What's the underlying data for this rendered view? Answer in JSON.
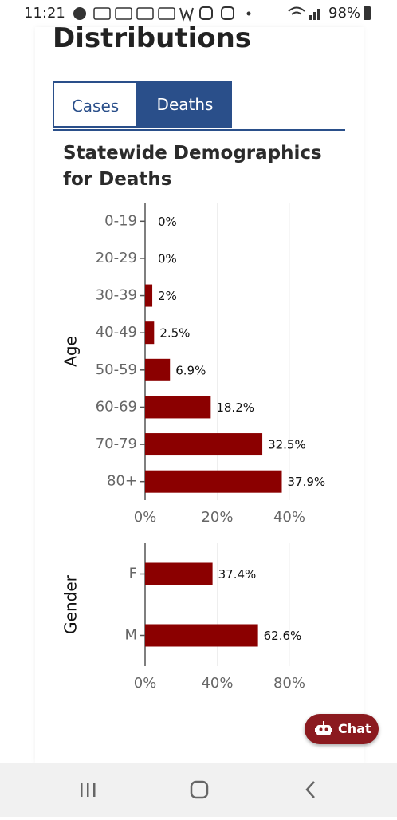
{
  "status_bar": {
    "time": "11:21",
    "battery": "98%"
  },
  "header": {
    "title": "Distributions"
  },
  "tabs": [
    "Cases",
    "Deaths"
  ],
  "chart_heading": "Statewide Demographics for Deaths",
  "chart_data": [
    {
      "type": "bar",
      "orientation": "horizontal",
      "y_label": "Age",
      "categories": [
        "0-19",
        "20-29",
        "30-39",
        "40-49",
        "50-59",
        "60-69",
        "70-79",
        "80+"
      ],
      "values": [
        0,
        0,
        2,
        2.5,
        6.9,
        18.2,
        32.5,
        37.9
      ],
      "value_labels": [
        "0%",
        "0%",
        "2%",
        "2.5%",
        "6.9%",
        "18.2%",
        "32.5%",
        "37.9%"
      ],
      "color": "#8b0000",
      "xlim": [
        0,
        40
      ],
      "xticks": [
        {
          "value": 0,
          "label": "0%"
        },
        {
          "value": 20,
          "label": "20%"
        },
        {
          "value": 40,
          "label": "40%"
        }
      ],
      "grid": true
    },
    {
      "type": "bar",
      "orientation": "horizontal",
      "y_label": "Gender",
      "categories": [
        "F",
        "M"
      ],
      "values": [
        37.4,
        62.6
      ],
      "value_labels": [
        "37.4%",
        "62.6%"
      ],
      "color": "#8b0000",
      "xlim": [
        0,
        80
      ],
      "xticks": [
        {
          "value": 0,
          "label": "0%"
        },
        {
          "value": 40,
          "label": "40%"
        },
        {
          "value": 80,
          "label": "80%"
        }
      ],
      "grid": true
    }
  ],
  "chat_button": "Chat"
}
